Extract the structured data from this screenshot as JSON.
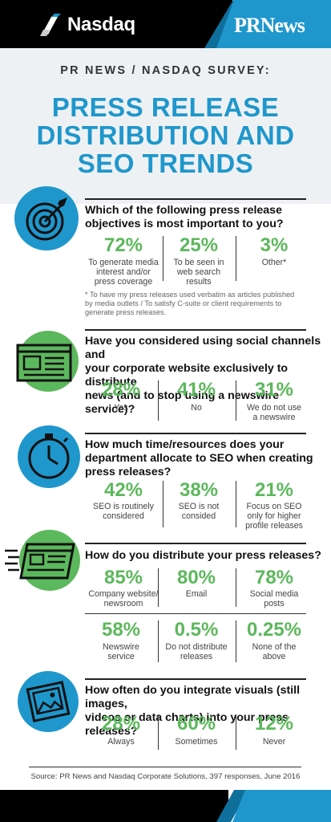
{
  "header": {
    "nasdaq_logo_text": "Nasdaq",
    "prnews_logo_text": "PRNews",
    "colors": {
      "blue": "#1f97cc",
      "green": "#5cb85c",
      "black": "#000000"
    }
  },
  "survey_label": "PR NEWS / NASDAQ SURVEY:",
  "title": [
    "PRESS RELEASE",
    "DISTRIBUTION AND",
    "SEO TRENDS"
  ],
  "q1": {
    "question": [
      "Which of the following press release",
      "objectives is most important to you?"
    ],
    "answers": [
      {
        "pct": "72%",
        "label": [
          "To generate media",
          "interest and/or",
          "press coverage"
        ]
      },
      {
        "pct": "25%",
        "label": [
          "To be seen in",
          "web search",
          "results"
        ]
      },
      {
        "pct": "3%",
        "label": [
          "Other*"
        ]
      }
    ],
    "note": [
      "* To have my press releases used verbatim as articles published",
      "by media outlets / To satisfy C-suite or client requirements to",
      "generate press releases."
    ],
    "icon": "target-icon"
  },
  "q2": {
    "question": [
      "Have you considered using social channels and",
      "your corporate website exclusively to distribute",
      "news (and to stop using a newswire service)?"
    ],
    "answers": [
      {
        "pct": "28%",
        "label": [
          "Yes"
        ]
      },
      {
        "pct": "41%",
        "label": [
          "No"
        ]
      },
      {
        "pct": "31%",
        "label": [
          "We do not use",
          "a newswire"
        ]
      }
    ],
    "icon": "browser-window-icon"
  },
  "q3": {
    "question": [
      "How much time/resources does your",
      "department allocate to SEO when creating",
      "press releases?"
    ],
    "answers": [
      {
        "pct": "42%",
        "label": [
          "SEO is routinely",
          "considered"
        ]
      },
      {
        "pct": "38%",
        "label": [
          "SEO is not",
          "consided"
        ]
      },
      {
        "pct": "21%",
        "label": [
          "Focus on SEO",
          "only for higher",
          "profile releases"
        ]
      }
    ],
    "icon": "clock-icon"
  },
  "q4": {
    "question": [
      "How do you distribute your press releases?"
    ],
    "answers_row1": [
      {
        "pct": "85%",
        "label": [
          "Company website/",
          "newsroom"
        ]
      },
      {
        "pct": "80%",
        "label": [
          "Email"
        ]
      },
      {
        "pct": "78%",
        "label": [
          "Social media",
          "posts"
        ]
      }
    ],
    "answers_row2": [
      {
        "pct": "58%",
        "label": [
          "Newswire",
          "service"
        ]
      },
      {
        "pct": "0.5%",
        "label": [
          "Do not distribute",
          "releases"
        ]
      },
      {
        "pct": "0.25%",
        "label": [
          "None of the",
          "above"
        ]
      }
    ],
    "icon": "fast-document-icon"
  },
  "q5": {
    "question": [
      "How often do you integrate visuals (still images,",
      "videos or data charts) into your press releases?"
    ],
    "answers": [
      {
        "pct": "28%",
        "label": [
          "Always"
        ]
      },
      {
        "pct": "60%",
        "label": [
          "Sometimes"
        ]
      },
      {
        "pct": "12%",
        "label": [
          "Never"
        ]
      }
    ],
    "icon": "image-frame-icon"
  },
  "source": "Source: PR News and Nasdaq Corporate Solutions, 397 responses, June 2016"
}
